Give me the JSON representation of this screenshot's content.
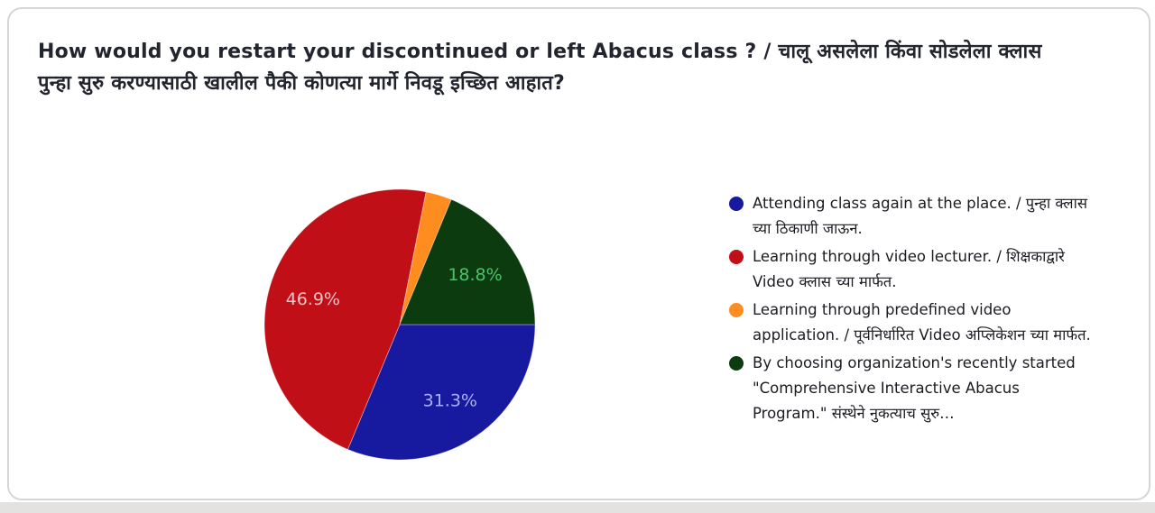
{
  "page": {
    "background": "#ffffff",
    "bottom_strip_color": "#e4e2e0"
  },
  "card": {
    "background": "#ffffff",
    "border_color": "#d8d6d3"
  },
  "question": {
    "title": "How would you restart your discontinued or left Abacus class ? / चालू असलेला किंवा सोडलेला क्लास पुन्हा सुरु करण्यासाठी खालील पैकी कोणत्या मार्गे निवडू इच्छित आहात?"
  },
  "chart_data": {
    "type": "pie",
    "title": "How would you restart your discontinued or left Abacus class ? / चालू असलेला किंवा सोडलेला क्लास पुन्हा सुरु करण्यासाठी खालील पैकी कोणत्या मार्गे निवडू इच्छित आहात?",
    "legend_position": "right",
    "start_angle_deg": 0,
    "direction": "clockwise",
    "slices": [
      {
        "label": "Attending class again at the place. / पुन्हा क्लास च्या ठिकाणी जाऊन.",
        "value_pct": 31.3,
        "pct_label": "31.3%",
        "color": "#17199f",
        "pct_label_color": "#a9b4ef"
      },
      {
        "label": "Learning through video lecturer. / शिक्षकाद्वारे Video क्लास च्या मार्फत.",
        "value_pct": 46.9,
        "pct_label": "46.9%",
        "color": "#c00f17",
        "pct_label_color": "#f2c2c6"
      },
      {
        "label": "Learning through predefined video application. / पूर्वनिर्धारित Video अप्लिकेशन च्या मार्फत.",
        "value_pct": 3.1,
        "pct_label": "",
        "color": "#ff8c1e",
        "pct_label_color": ""
      },
      {
        "label": "By choosing organization's recently started \"Comprehensive Interactive Abacus Program.\" संस्थेने नुकत्याच सुरु…",
        "value_pct": 18.8,
        "pct_label": "18.8%",
        "color": "#0d3b10",
        "pct_label_color": "#4cc06b"
      }
    ]
  }
}
